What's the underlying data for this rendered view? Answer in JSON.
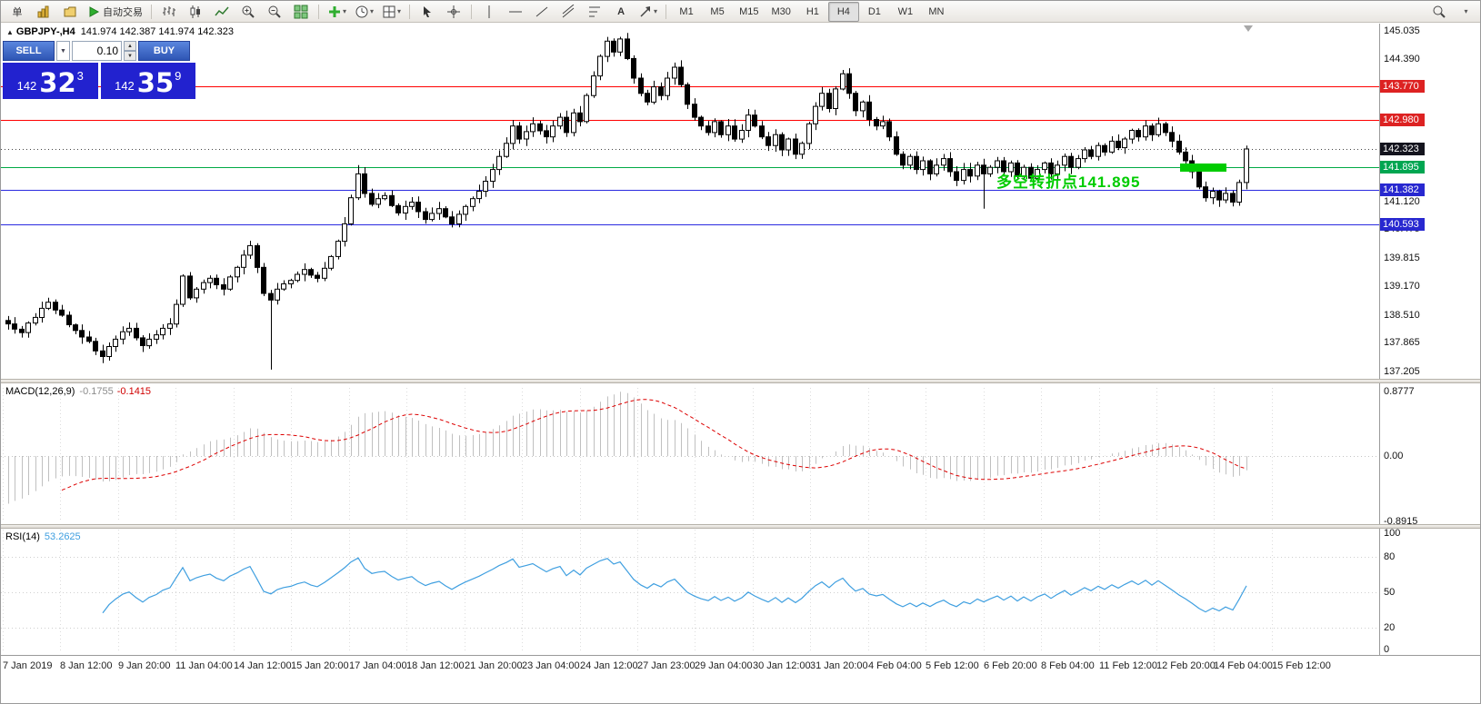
{
  "toolbar": {
    "new_order_label": "单",
    "autotrading_label": "自动交易",
    "timeframes": [
      "M1",
      "M5",
      "M15",
      "M30",
      "H1",
      "H4",
      "D1",
      "W1",
      "MN"
    ],
    "active_timeframe": "H4"
  },
  "chart_header": {
    "symbol": "GBPJPY-,H4",
    "ohlc": "141.974 142.387 141.974 142.323"
  },
  "trade_panel": {
    "sell_label": "SELL",
    "buy_label": "BUY",
    "volume": "0.10",
    "sell_price_prefix": "142",
    "sell_price_big": "32",
    "sell_price_sup": "3",
    "buy_price_prefix": "142",
    "buy_price_big": "35",
    "buy_price_sup": "9"
  },
  "annotation": {
    "text": "多空转折点141.895",
    "color": "#00cc00",
    "line_price": 141.895
  },
  "levels": [
    {
      "price": "143.770",
      "value": 143.77,
      "color": "#ff0000",
      "box": "#dd2222",
      "style": "solid",
      "name": "resistance-upper"
    },
    {
      "price": "142.980",
      "value": 142.98,
      "color": "#ff0000",
      "box": "#dd2222",
      "style": "solid",
      "name": "resistance-lower"
    },
    {
      "price": "142.323",
      "value": 142.323,
      "color": "#444444",
      "box": "#14141e",
      "style": "dotted",
      "name": "bid"
    },
    {
      "price": "141.895",
      "value": 141.895,
      "color": "#00aa44",
      "box": "#00a651",
      "style": "solid",
      "name": "pivot"
    },
    {
      "price": "141.382",
      "value": 141.382,
      "color": "#2a2ae0",
      "box": "#2828d0",
      "style": "solid",
      "name": "support-upper"
    },
    {
      "price": "140.593",
      "value": 140.593,
      "color": "#2a2ae0",
      "box": "#2828d0",
      "style": "solid",
      "name": "support-lower"
    }
  ],
  "price_axis": [
    "145.035",
    "144.390",
    "141.120",
    "140.475",
    "139.815",
    "139.170",
    "138.510",
    "137.865",
    "137.205"
  ],
  "macd": {
    "label": "MACD(12,26,9)",
    "value_main": "-0.1755",
    "value_signal": "-0.1415",
    "axis": [
      "0.8777",
      "0.00",
      "-0.8915"
    ]
  },
  "rsi": {
    "label": "RSI(14)",
    "value": "53.2625",
    "axis": [
      "100",
      "80",
      "50",
      "20",
      "0"
    ],
    "levels": [
      80,
      50,
      20
    ]
  },
  "time_axis": [
    "7 Jan 2019",
    "8 Jan 12:00",
    "9 Jan 20:00",
    "11 Jan 04:00",
    "14 Jan 12:00",
    "15 Jan 20:00",
    "17 Jan 04:00",
    "18 Jan 12:00",
    "21 Jan 20:00",
    "23 Jan 04:00",
    "24 Jan 12:00",
    "27 Jan 23:00",
    "29 Jan 04:00",
    "30 Jan 12:00",
    "31 Jan 20:00",
    "4 Feb 04:00",
    "5 Feb 12:00",
    "6 Feb 20:00",
    "8 Feb 04:00",
    "11 Feb 12:00",
    "12 Feb 20:00",
    "14 Feb 04:00",
    "15 Feb 12:00"
  ],
  "chart_data": [
    {
      "type": "candlestick",
      "symbol": "GBPJPY",
      "timeframe": "H4",
      "title": "GBPJPY-,H4",
      "ylim": [
        137.205,
        145.035
      ],
      "closes": [
        138.3,
        138.18,
        138.1,
        138.32,
        138.45,
        138.66,
        138.8,
        138.62,
        138.5,
        138.28,
        138.15,
        138.0,
        137.9,
        137.68,
        137.55,
        137.78,
        137.95,
        138.12,
        138.2,
        137.98,
        137.8,
        137.95,
        138.05,
        138.2,
        138.3,
        138.75,
        139.4,
        138.9,
        139.1,
        139.25,
        139.35,
        139.2,
        139.1,
        139.38,
        139.6,
        139.88,
        140.1,
        139.6,
        139.0,
        138.85,
        139.1,
        139.22,
        139.3,
        139.44,
        139.55,
        139.42,
        139.35,
        139.58,
        139.85,
        140.2,
        140.6,
        141.2,
        141.75,
        141.3,
        141.05,
        141.18,
        141.25,
        141.02,
        140.85,
        141.0,
        141.1,
        140.88,
        140.7,
        140.84,
        140.95,
        140.76,
        140.6,
        140.82,
        141.0,
        141.18,
        141.35,
        141.58,
        141.85,
        142.15,
        142.45,
        142.85,
        142.55,
        142.72,
        142.9,
        142.74,
        142.6,
        142.85,
        143.05,
        142.7,
        143.15,
        142.95,
        143.55,
        144.0,
        144.45,
        144.8,
        144.55,
        144.85,
        144.4,
        143.95,
        143.6,
        143.4,
        143.75,
        143.55,
        143.95,
        144.2,
        143.8,
        143.35,
        143.05,
        142.85,
        142.7,
        142.95,
        142.65,
        142.85,
        142.55,
        142.75,
        143.1,
        142.85,
        142.6,
        142.4,
        142.65,
        142.3,
        142.55,
        142.2,
        142.45,
        142.9,
        143.3,
        143.6,
        143.25,
        143.7,
        144.05,
        143.6,
        143.2,
        143.4,
        143.0,
        142.85,
        142.95,
        142.6,
        142.2,
        141.95,
        142.15,
        141.85,
        142.05,
        141.75,
        141.95,
        142.1,
        141.8,
        141.6,
        141.85,
        141.7,
        141.95,
        141.75,
        141.9,
        142.05,
        141.8,
        142.0,
        141.7,
        141.9,
        141.65,
        141.85,
        142.0,
        141.75,
        141.95,
        142.15,
        141.9,
        142.1,
        142.3,
        142.15,
        142.4,
        142.25,
        142.5,
        142.35,
        142.55,
        142.75,
        142.6,
        142.85,
        142.65,
        142.9,
        142.7,
        142.5,
        142.25,
        142.05,
        141.8,
        141.45,
        141.2,
        141.35,
        141.15,
        141.3,
        141.1,
        141.55,
        142.32
      ],
      "wick_overrides": {
        "39": {
          "low": 137.25
        },
        "52": {
          "high": 141.95
        },
        "145": {
          "low": 140.95
        },
        "184": {
          "high": 142.4
        }
      }
    },
    {
      "type": "macd_histogram",
      "name": "MACD(12,26,9)",
      "current": [
        -0.1755,
        -0.1415
      ],
      "ylim": [
        -0.8915,
        0.8777
      ],
      "derived_from": "closes"
    },
    {
      "type": "line",
      "name": "RSI(14)",
      "current": 53.2625,
      "ylim": [
        0,
        100
      ],
      "levels": [
        80,
        50,
        20
      ],
      "derived_from": "closes"
    }
  ]
}
